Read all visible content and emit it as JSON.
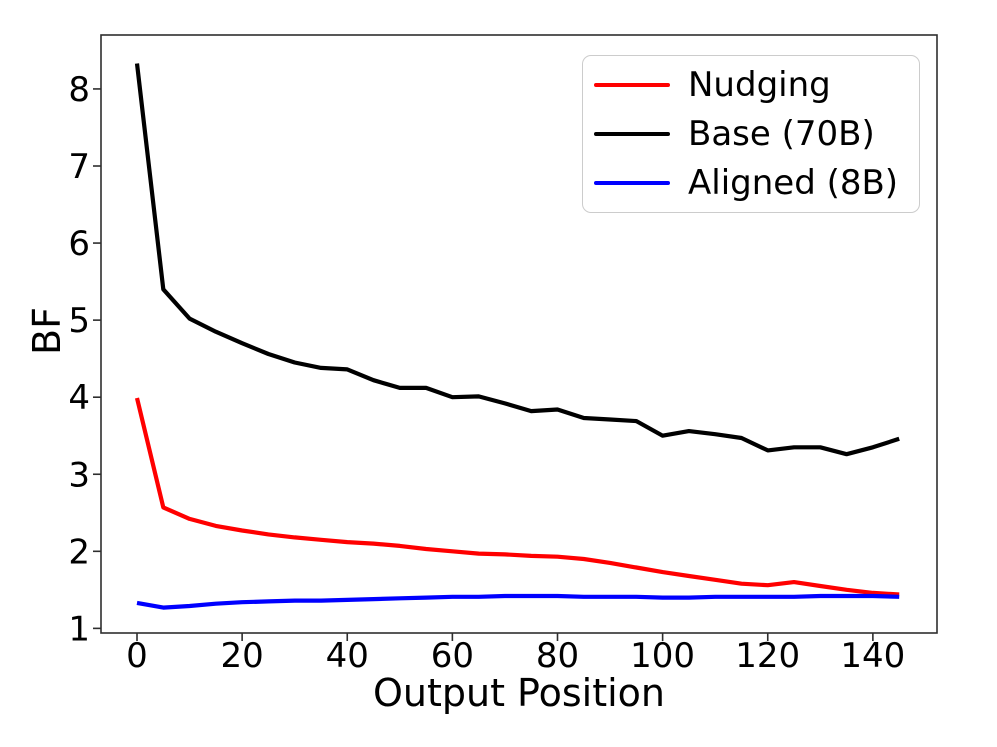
{
  "figure": {
    "background": "#ffffff",
    "axis_color": "#2e2e2e",
    "tick_label_color": "#000000",
    "legend_border_color": "#cccccc"
  },
  "chart_data": {
    "type": "line",
    "title": "",
    "xlabel": "Output Position",
    "ylabel": "BF",
    "x": [
      0,
      5,
      10,
      15,
      20,
      25,
      30,
      35,
      40,
      45,
      50,
      55,
      60,
      65,
      70,
      75,
      80,
      85,
      90,
      95,
      100,
      105,
      110,
      115,
      120,
      125,
      130,
      135,
      140,
      145
    ],
    "series": [
      {
        "name": "Nudging",
        "color": "#ff0000",
        "values": [
          3.99,
          2.57,
          2.42,
          2.33,
          2.27,
          2.22,
          2.18,
          2.15,
          2.12,
          2.1,
          2.07,
          2.03,
          2.0,
          1.97,
          1.96,
          1.94,
          1.93,
          1.9,
          1.85,
          1.79,
          1.73,
          1.68,
          1.63,
          1.58,
          1.56,
          1.6,
          1.55,
          1.5,
          1.46,
          1.44
        ]
      },
      {
        "name": "Base (70B)",
        "color": "#000000",
        "values": [
          8.33,
          5.4,
          5.02,
          4.85,
          4.7,
          4.56,
          4.45,
          4.38,
          4.36,
          4.22,
          4.12,
          4.12,
          4.0,
          4.01,
          3.92,
          3.82,
          3.84,
          3.73,
          3.71,
          3.69,
          3.5,
          3.56,
          3.52,
          3.47,
          3.31,
          3.35,
          3.35,
          3.26,
          3.35,
          3.46
        ]
      },
      {
        "name": "Aligned (8B)",
        "color": "#0000ff",
        "values": [
          1.33,
          1.27,
          1.29,
          1.32,
          1.34,
          1.35,
          1.36,
          1.36,
          1.37,
          1.38,
          1.39,
          1.4,
          1.41,
          1.41,
          1.42,
          1.42,
          1.42,
          1.41,
          1.41,
          1.41,
          1.4,
          1.4,
          1.41,
          1.41,
          1.41,
          1.41,
          1.42,
          1.42,
          1.42,
          1.41
        ]
      }
    ],
    "xticks": [
      0,
      20,
      40,
      60,
      80,
      100,
      120,
      140
    ],
    "yticks": [
      1,
      2,
      3,
      4,
      5,
      6,
      7,
      8
    ],
    "xlim": [
      -6.85,
      152.2
    ],
    "ylim": [
      0.94,
      8.7
    ],
    "grid": false,
    "legend_position": "upper right",
    "line_width": 4.2
  }
}
